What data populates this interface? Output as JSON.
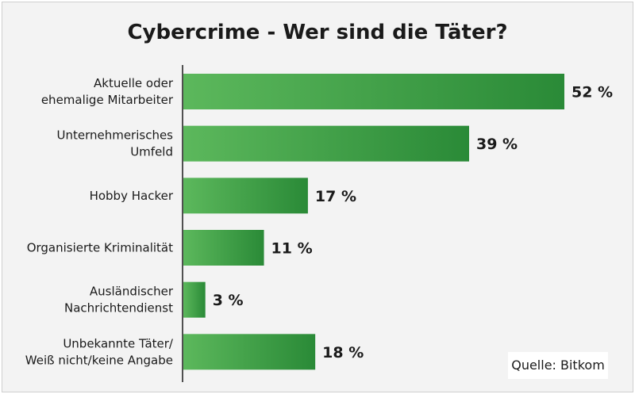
{
  "chart_data": {
    "type": "bar",
    "orientation": "horizontal",
    "title": "Cybercrime - Wer sind die Täter?",
    "source": "Quelle: Bitkom",
    "categories": [
      [
        "Aktuelle oder",
        "ehemalige Mitarbeiter"
      ],
      [
        "Unternehmerisches",
        "Umfeld"
      ],
      [
        "Hobby Hacker"
      ],
      [
        "Organisierte Kriminalität"
      ],
      [
        "Ausländischer",
        "Nachrichtendienst"
      ],
      [
        "Unbekannte Täter/",
        "Weiß nicht/keine Angabe"
      ]
    ],
    "values": [
      52,
      39,
      17,
      11,
      3,
      18
    ],
    "value_labels": [
      "52 %",
      "39 %",
      "17 %",
      "11 %",
      "3 %",
      "18 %"
    ],
    "unit": "%",
    "xlim": [
      0,
      52
    ],
    "grid": false,
    "bar_gradient": [
      "#5cb85c",
      "#2a8a37"
    ]
  }
}
